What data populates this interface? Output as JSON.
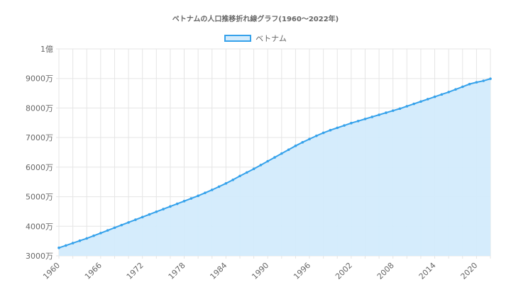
{
  "chart_data": {
    "type": "area",
    "title": "ベトナムの人口推移折れ線グラフ(1960〜2022年)",
    "xlabel": "",
    "ylabel": "",
    "ylim": [
      30000000,
      100000000
    ],
    "y_tick_labels": [
      "3000万",
      "4000万",
      "5000万",
      "6000万",
      "7000万",
      "8000万",
      "9000万",
      "1億"
    ],
    "x_tick_labels": [
      "1960",
      "1966",
      "1972",
      "1978",
      "1984",
      "1990",
      "1996",
      "2002",
      "2008",
      "2014",
      "2020"
    ],
    "grid": true,
    "legend_position": "top",
    "series": [
      {
        "name": "ベトナム",
        "line_color": "#36a2eb",
        "fill_color": "#d3ebfc",
        "x": [
          1960,
          1961,
          1962,
          1963,
          1964,
          1965,
          1966,
          1967,
          1968,
          1969,
          1970,
          1971,
          1972,
          1973,
          1974,
          1975,
          1976,
          1977,
          1978,
          1979,
          1980,
          1981,
          1982,
          1983,
          1984,
          1985,
          1986,
          1987,
          1988,
          1989,
          1990,
          1991,
          1992,
          1993,
          1994,
          1995,
          1996,
          1997,
          1998,
          1999,
          2000,
          2001,
          2002,
          2003,
          2004,
          2005,
          2006,
          2007,
          2008,
          2009,
          2010,
          2011,
          2012,
          2013,
          2014,
          2015,
          2016,
          2017,
          2018,
          2019,
          2020,
          2021,
          2022
        ],
        "values": [
          32700000,
          33500000,
          34300000,
          35100000,
          35900000,
          36800000,
          37700000,
          38600000,
          39500000,
          40400000,
          41300000,
          42200000,
          43100000,
          44000000,
          44900000,
          45800000,
          46700000,
          47600000,
          48500000,
          49400000,
          50300000,
          51300000,
          52300000,
          53400000,
          54500000,
          55700000,
          57000000,
          58200000,
          59400000,
          60700000,
          62000000,
          63300000,
          64600000,
          65900000,
          67200000,
          68400000,
          69500000,
          70600000,
          71600000,
          72500000,
          73300000,
          74100000,
          74900000,
          75600000,
          76300000,
          77000000,
          77700000,
          78400000,
          79100000,
          79800000,
          80600000,
          81400000,
          82200000,
          83000000,
          83800000,
          84600000,
          85400000,
          86300000,
          87200000,
          88100000,
          88700000,
          89200000,
          89900000
        ]
      }
    ]
  }
}
